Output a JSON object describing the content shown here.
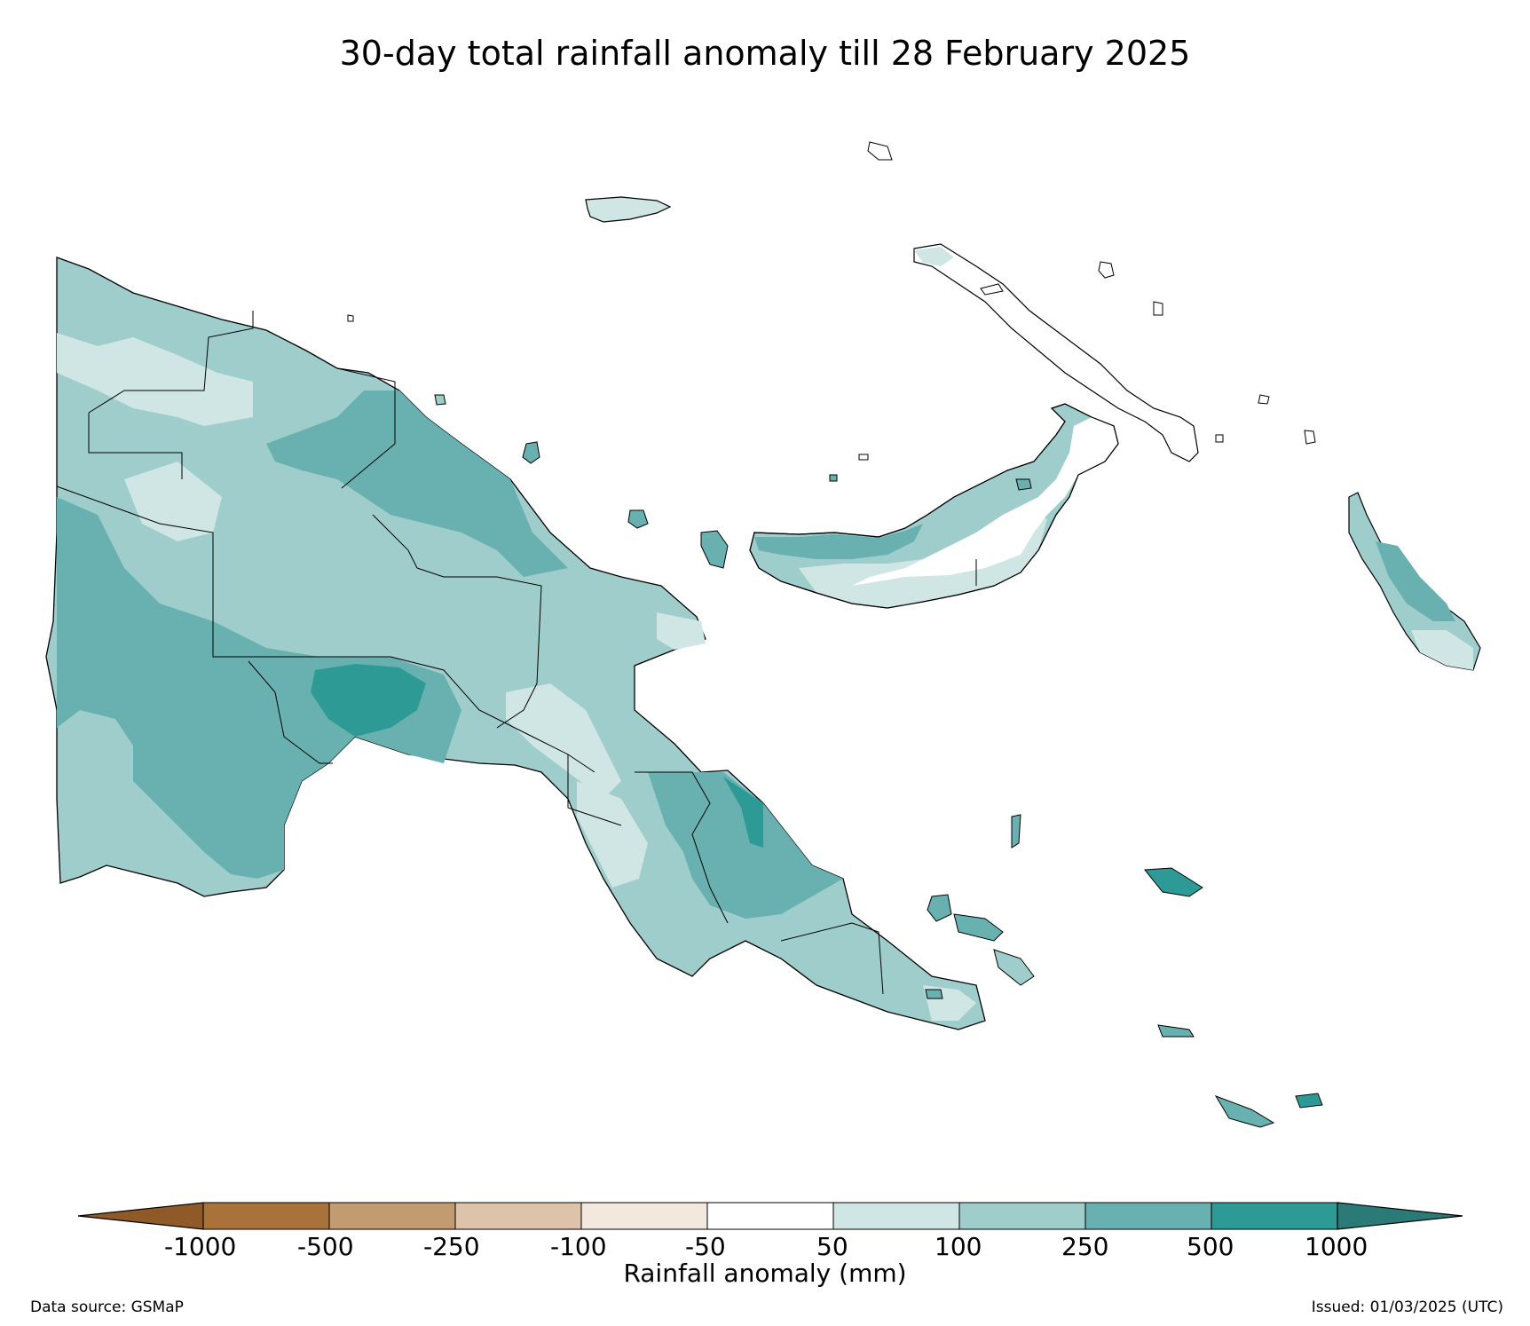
{
  "title": "30-day total rainfall anomaly till 28 February 2025",
  "colorbar": {
    "label": "Rainfall anomaly (mm)",
    "ticks": [
      "-1000",
      "-500",
      "-250",
      "-100",
      "-50",
      "50",
      "100",
      "250",
      "500",
      "1000"
    ],
    "colors": {
      "below_min": "#8f5a28",
      "bins": [
        "#a9723a",
        "#c39b70",
        "#ddc3aa",
        "#f2e8de",
        "#ffffff",
        "#cfe6e5",
        "#9ecdcc",
        "#68b1b0",
        "#2e9a95"
      ],
      "above_max": "#2a7a78"
    }
  },
  "footer": {
    "source": "Data source: GSMaP",
    "issued": "Issued: 01/03/2025 (UTC)"
  },
  "legend_classes": {
    "c50": "#cfe6e5",
    "c100": "#9ecdcc",
    "c250": "#68b1b0",
    "c500": "#2e9a95"
  }
}
